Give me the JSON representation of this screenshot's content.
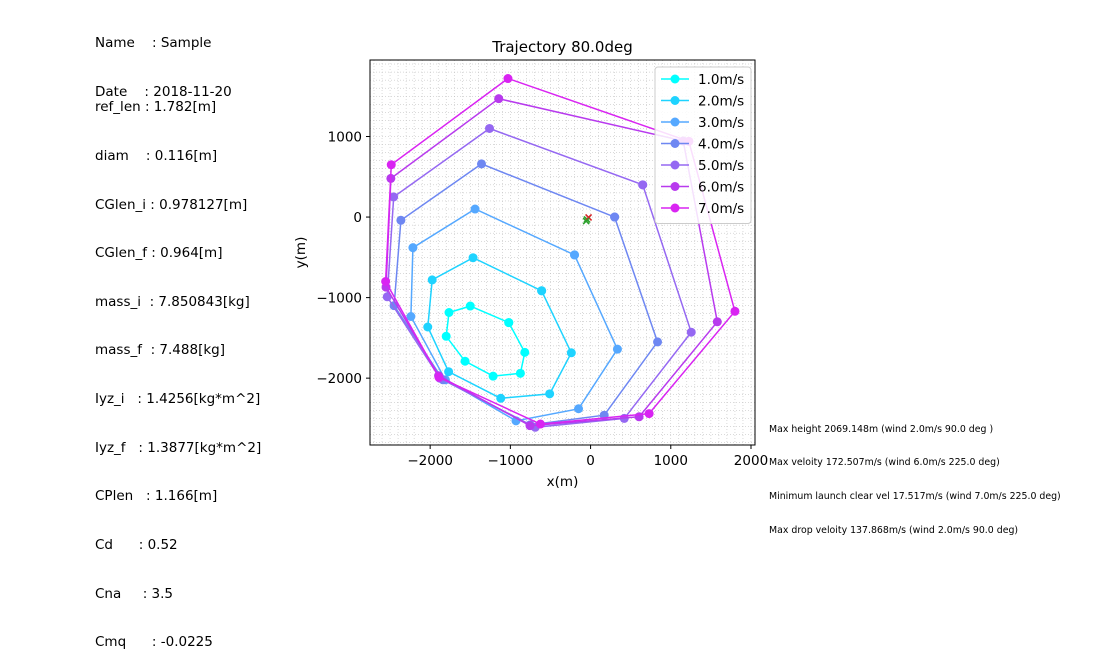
{
  "header": {
    "lines": [
      "Name    : Sample",
      "Date    : 2018-11-20"
    ]
  },
  "params": {
    "lines": [
      "ref_len : 1.782[m]",
      "diam    : 0.116[m]",
      "CGlen_i : 0.978127[m]",
      "CGlen_f : 0.964[m]",
      "mass_i  : 7.850843[kg]",
      "mass_f  : 7.488[kg]",
      "Iyz_i   : 1.4256[kg*m^2]",
      "Iyz_f   : 1.3877[kg*m^2]",
      "CPlen   : 1.166[m]",
      "Cd      : 0.52",
      "Cna     : 3.5",
      "Cmq      : -0.0225"
    ]
  },
  "summary": {
    "lines": [
      "Max height 2069.148m (wind 2.0m/s 90.0 deg )",
      "Max veloity 172.507m/s (wind 6.0m/s 225.0 deg)",
      "Minimum launch clear vel 17.517m/s (wind 7.0m/s 225.0 deg)",
      "Max drop veloity 137.868m/s (wind 2.0m/s 90.0 deg)"
    ]
  },
  "chart_data": {
    "type": "line",
    "title": "Trajectory 80.0deg",
    "xlabel": "x(m)",
    "ylabel": "y(m)",
    "xlim": [
      -2750,
      2050
    ],
    "ylim": [
      -2830,
      1950
    ],
    "xticks": [
      -2000,
      -1000,
      0,
      1000,
      2000
    ],
    "yticks": [
      -2000,
      -1000,
      0,
      1000
    ],
    "xtick_labels": [
      "−2000",
      "−1000",
      "0",
      "1000",
      "2000"
    ],
    "ytick_labels": [
      "−2000",
      "−1000",
      "0",
      "1000"
    ],
    "grid": true,
    "minor_grid": true,
    "legend": "upper right",
    "launch_marker": {
      "x": [
        -45,
        -25,
        -55
      ],
      "y": [
        -30,
        -5,
        -50
      ],
      "colors": [
        "#2ca02c",
        "#d62728",
        "#2ca02c"
      ]
    },
    "series": [
      {
        "name": "1.0m/s",
        "color": "#00ffff",
        "x": [
          -1020,
          -820,
          -875,
          -1215,
          -1565,
          -1800,
          -1765,
          -1500,
          -1020
        ],
        "y": [
          -1310,
          -1680,
          -1940,
          -1975,
          -1790,
          -1480,
          -1185,
          -1105,
          -1310
        ]
      },
      {
        "name": "2.0m/s",
        "color": "#1ed3ff",
        "x": [
          -610,
          -240,
          -510,
          -1120,
          -1770,
          -2030,
          -1975,
          -1465,
          -610
        ],
        "y": [
          -915,
          -1685,
          -2195,
          -2250,
          -1920,
          -1365,
          -780,
          -505,
          -915
        ]
      },
      {
        "name": "3.0m/s",
        "color": "#55a8ff",
        "x": [
          -200,
          335,
          -150,
          -930,
          -1810,
          -2240,
          -2215,
          -1440,
          -200
        ],
        "y": [
          -470,
          -1640,
          -2380,
          -2530,
          -2020,
          -1235,
          -380,
          100,
          -470
        ]
      },
      {
        "name": "4.0m/s",
        "color": "#6e87f2",
        "x": [
          300,
          835,
          170,
          -755,
          -1840,
          -2450,
          -2365,
          -1360,
          300
        ],
        "y": [
          0,
          -1550,
          -2460,
          -2580,
          -2020,
          -1100,
          -40,
          660,
          0
        ]
      },
      {
        "name": "5.0m/s",
        "color": "#9568f2",
        "x": [
          650,
          1255,
          420,
          -690,
          -1880,
          -2535,
          -2455,
          -1260,
          650
        ],
        "y": [
          400,
          -1430,
          -2500,
          -2610,
          -2000,
          -990,
          250,
          1100,
          400
        ]
      },
      {
        "name": "6.0m/s",
        "color": "#b83aee",
        "x": [
          1155,
          1580,
          605,
          -755,
          -1895,
          -2550,
          -2490,
          -1145,
          1155
        ],
        "y": [
          945,
          -1300,
          -2480,
          -2590,
          -1970,
          -870,
          480,
          1470,
          945
        ]
      },
      {
        "name": "7.0m/s",
        "color": "#d924f2",
        "x": [
          1225,
          1800,
          730,
          -625,
          -1890,
          -2555,
          -2485,
          -1030,
          1225
        ],
        "y": [
          940,
          -1170,
          -2440,
          -2570,
          -1990,
          -800,
          650,
          1720,
          940
        ]
      }
    ]
  }
}
